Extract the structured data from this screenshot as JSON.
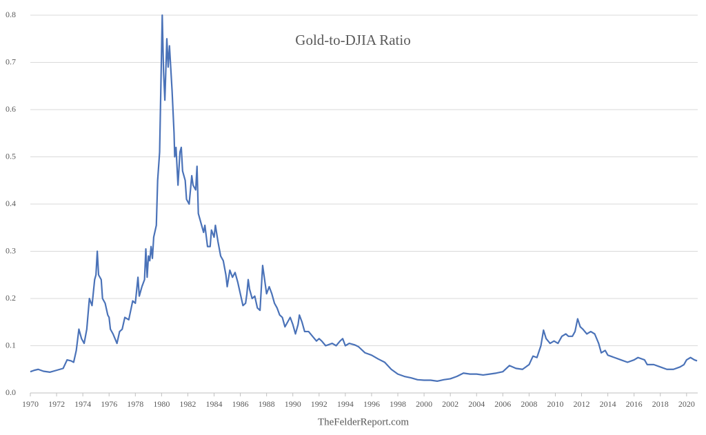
{
  "chart_data": {
    "type": "line",
    "title": "Gold-to-DJIA Ratio",
    "footer": "TheFelderReport.com",
    "x": [
      1970.0,
      1970.3,
      1970.6,
      1971.0,
      1971.5,
      1972.0,
      1972.5,
      1972.8,
      1973.1,
      1973.3,
      1973.5,
      1973.7,
      1973.9,
      1974.1,
      1974.3,
      1974.5,
      1974.7,
      1974.9,
      1975.0,
      1975.1,
      1975.2,
      1975.4,
      1975.5,
      1975.7,
      1975.9,
      1976.0,
      1976.1,
      1976.3,
      1976.6,
      1976.8,
      1977.0,
      1977.2,
      1977.5,
      1977.8,
      1978.0,
      1978.2,
      1978.3,
      1978.5,
      1978.7,
      1978.8,
      1978.9,
      1979.0,
      1979.1,
      1979.2,
      1979.3,
      1979.4,
      1979.6,
      1979.7,
      1979.85,
      1980.05,
      1980.15,
      1980.25,
      1980.4,
      1980.5,
      1980.6,
      1980.8,
      1980.95,
      1981.0,
      1981.1,
      1981.25,
      1981.4,
      1981.5,
      1981.6,
      1981.8,
      1981.9,
      1982.1,
      1982.3,
      1982.4,
      1982.6,
      1982.7,
      1982.8,
      1983.0,
      1983.2,
      1983.3,
      1983.5,
      1983.7,
      1983.8,
      1984.0,
      1984.1,
      1984.3,
      1984.5,
      1984.7,
      1984.9,
      1985.0,
      1985.2,
      1985.4,
      1985.6,
      1985.8,
      1986.0,
      1986.2,
      1986.4,
      1986.5,
      1986.6,
      1986.7,
      1986.9,
      1987.1,
      1987.3,
      1987.5,
      1987.7,
      1987.8,
      1988.0,
      1988.2,
      1988.4,
      1988.6,
      1988.8,
      1989.0,
      1989.2,
      1989.4,
      1989.6,
      1989.8,
      1990.0,
      1990.2,
      1990.4,
      1990.5,
      1990.7,
      1990.9,
      1991.2,
      1991.5,
      1991.8,
      1992.0,
      1992.2,
      1992.5,
      1993.0,
      1993.3,
      1993.6,
      1993.8,
      1994.0,
      1994.3,
      1994.7,
      1995.0,
      1995.5,
      1996.0,
      1996.5,
      1997.0,
      1997.5,
      1998.0,
      1998.5,
      1999.0,
      1999.5,
      2000.0,
      2000.5,
      2001.0,
      2001.5,
      2002.0,
      2002.5,
      2003.0,
      2003.5,
      2004.0,
      2004.5,
      2005.0,
      2005.5,
      2006.0,
      2006.5,
      2007.0,
      2007.5,
      2008.0,
      2008.3,
      2008.6,
      2008.9,
      2009.1,
      2009.3,
      2009.6,
      2009.9,
      2010.2,
      2010.5,
      2010.8,
      2011.0,
      2011.3,
      2011.5,
      2011.7,
      2011.9,
      2012.1,
      2012.4,
      2012.7,
      2013.0,
      2013.3,
      2013.5,
      2013.8,
      2014.0,
      2014.5,
      2015.0,
      2015.5,
      2016.0,
      2016.3,
      2016.8,
      2017.0,
      2017.5,
      2018.0,
      2018.5,
      2019.0,
      2019.5,
      2019.8,
      2020.0,
      2020.3,
      2020.6,
      2020.8
    ],
    "series": [
      {
        "name": "Gold-to-DJIA",
        "color": "#4a72b8",
        "values": [
          0.045,
          0.048,
          0.05,
          0.046,
          0.044,
          0.048,
          0.052,
          0.07,
          0.068,
          0.065,
          0.09,
          0.135,
          0.115,
          0.105,
          0.135,
          0.2,
          0.185,
          0.24,
          0.25,
          0.3,
          0.25,
          0.24,
          0.2,
          0.19,
          0.165,
          0.16,
          0.135,
          0.125,
          0.105,
          0.13,
          0.135,
          0.16,
          0.155,
          0.195,
          0.19,
          0.245,
          0.205,
          0.225,
          0.24,
          0.305,
          0.245,
          0.29,
          0.28,
          0.31,
          0.285,
          0.33,
          0.355,
          0.45,
          0.51,
          0.8,
          0.68,
          0.62,
          0.75,
          0.69,
          0.735,
          0.64,
          0.55,
          0.5,
          0.52,
          0.44,
          0.51,
          0.52,
          0.47,
          0.45,
          0.41,
          0.4,
          0.46,
          0.44,
          0.43,
          0.48,
          0.38,
          0.36,
          0.34,
          0.355,
          0.31,
          0.31,
          0.345,
          0.33,
          0.355,
          0.32,
          0.29,
          0.28,
          0.25,
          0.225,
          0.26,
          0.245,
          0.255,
          0.235,
          0.21,
          0.185,
          0.19,
          0.21,
          0.24,
          0.22,
          0.2,
          0.205,
          0.18,
          0.175,
          0.27,
          0.25,
          0.21,
          0.225,
          0.21,
          0.19,
          0.18,
          0.165,
          0.16,
          0.14,
          0.15,
          0.16,
          0.145,
          0.125,
          0.145,
          0.165,
          0.15,
          0.13,
          0.13,
          0.12,
          0.11,
          0.115,
          0.11,
          0.1,
          0.105,
          0.1,
          0.11,
          0.115,
          0.1,
          0.105,
          0.102,
          0.098,
          0.085,
          0.08,
          0.072,
          0.065,
          0.05,
          0.04,
          0.035,
          0.032,
          0.028,
          0.027,
          0.027,
          0.025,
          0.028,
          0.03,
          0.035,
          0.042,
          0.04,
          0.04,
          0.038,
          0.04,
          0.042,
          0.045,
          0.058,
          0.052,
          0.05,
          0.06,
          0.078,
          0.075,
          0.1,
          0.133,
          0.115,
          0.105,
          0.11,
          0.105,
          0.12,
          0.125,
          0.12,
          0.12,
          0.13,
          0.157,
          0.14,
          0.135,
          0.125,
          0.13,
          0.125,
          0.105,
          0.085,
          0.09,
          0.08,
          0.075,
          0.07,
          0.065,
          0.07,
          0.075,
          0.07,
          0.06,
          0.06,
          0.055,
          0.05,
          0.05,
          0.055,
          0.06,
          0.07,
          0.075,
          0.07,
          0.068
        ]
      }
    ],
    "xlim": [
      1970,
      2020.85
    ],
    "xticks": [
      1970,
      1972,
      1974,
      1976,
      1978,
      1980,
      1982,
      1984,
      1986,
      1988,
      1990,
      1992,
      1994,
      1996,
      1998,
      2000,
      2002,
      2004,
      2006,
      2008,
      2010,
      2012,
      2014,
      2016,
      2018,
      2020
    ],
    "ylim": [
      0,
      0.8
    ],
    "yticks": [
      {
        "value": 0,
        "label": "0.0"
      },
      0.1,
      0.2,
      0.3,
      0.4,
      0.5,
      0.6,
      0.7,
      0.8
    ],
    "grid": true
  }
}
